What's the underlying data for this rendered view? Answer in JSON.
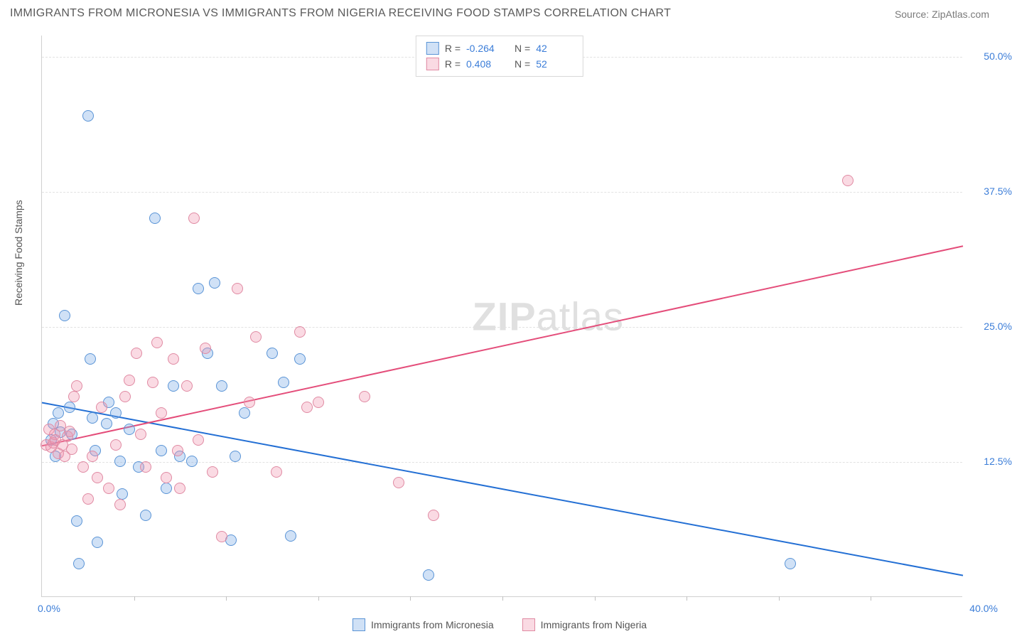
{
  "title": "IMMIGRANTS FROM MICRONESIA VS IMMIGRANTS FROM NIGERIA RECEIVING FOOD STAMPS CORRELATION CHART",
  "source_label": "Source: ",
  "source_name": "ZipAtlas.com",
  "ylabel": "Receiving Food Stamps",
  "watermark_bold": "ZIP",
  "watermark_light": "atlas",
  "axes": {
    "xmin": 0.0,
    "xmax": 40.0,
    "ymin": 0.0,
    "ymax": 52.0,
    "ytick_labels": [
      "12.5%",
      "25.0%",
      "37.5%",
      "50.0%"
    ],
    "ytick_values": [
      12.5,
      25.0,
      37.5,
      50.0
    ],
    "xtick_left": "0.0%",
    "xtick_right": "40.0%",
    "xtick_minor_positions": [
      4,
      8,
      12,
      16,
      20,
      24,
      28,
      32,
      36
    ]
  },
  "series": [
    {
      "name": "Immigrants from Micronesia",
      "fill": "rgba(120,170,230,0.35)",
      "stroke": "#5a94d6",
      "line_color": "#236fd4",
      "R": "-0.264",
      "N": "42",
      "trend": {
        "x1": 0,
        "y1": 18.0,
        "x2": 40,
        "y2": 2.0
      },
      "points": [
        [
          0.4,
          14.5
        ],
        [
          0.5,
          16.0
        ],
        [
          0.6,
          13.0
        ],
        [
          0.7,
          17.0
        ],
        [
          0.8,
          15.2
        ],
        [
          1.0,
          26.0
        ],
        [
          1.2,
          17.5
        ],
        [
          1.3,
          15.0
        ],
        [
          1.5,
          7.0
        ],
        [
          1.6,
          3.0
        ],
        [
          2.0,
          44.5
        ],
        [
          2.1,
          22.0
        ],
        [
          2.2,
          16.5
        ],
        [
          2.3,
          13.5
        ],
        [
          2.4,
          5.0
        ],
        [
          2.8,
          16.0
        ],
        [
          2.9,
          18.0
        ],
        [
          3.2,
          17.0
        ],
        [
          3.4,
          12.5
        ],
        [
          3.5,
          9.5
        ],
        [
          3.8,
          15.5
        ],
        [
          4.2,
          12.0
        ],
        [
          4.5,
          7.5
        ],
        [
          4.9,
          35.0
        ],
        [
          5.2,
          13.5
        ],
        [
          5.4,
          10.0
        ],
        [
          5.7,
          19.5
        ],
        [
          6.0,
          13.0
        ],
        [
          6.5,
          12.5
        ],
        [
          6.8,
          28.5
        ],
        [
          7.2,
          22.5
        ],
        [
          7.5,
          29.0
        ],
        [
          7.8,
          19.5
        ],
        [
          8.2,
          5.2
        ],
        [
          8.4,
          13.0
        ],
        [
          8.8,
          17.0
        ],
        [
          10.0,
          22.5
        ],
        [
          10.5,
          19.8
        ],
        [
          10.8,
          5.6
        ],
        [
          16.8,
          2.0
        ],
        [
          32.5,
          3.0
        ],
        [
          11.2,
          22.0
        ]
      ]
    },
    {
      "name": "Immigrants from Nigeria",
      "fill": "rgba(240,150,175,0.35)",
      "stroke": "#e08aa3",
      "line_color": "#e44d7a",
      "R": "0.408",
      "N": "52",
      "trend": {
        "x1": 0,
        "y1": 14.0,
        "x2": 40,
        "y2": 32.5
      },
      "points": [
        [
          0.2,
          14.0
        ],
        [
          0.3,
          15.5
        ],
        [
          0.4,
          13.8
        ],
        [
          0.5,
          14.2
        ],
        [
          0.55,
          15.0
        ],
        [
          0.6,
          14.5
        ],
        [
          0.7,
          13.2
        ],
        [
          0.8,
          15.8
        ],
        [
          0.9,
          14.0
        ],
        [
          1.0,
          13.0
        ],
        [
          1.1,
          14.8
        ],
        [
          1.2,
          15.3
        ],
        [
          1.3,
          13.6
        ],
        [
          1.4,
          18.5
        ],
        [
          1.5,
          19.5
        ],
        [
          1.8,
          12.0
        ],
        [
          2.0,
          9.0
        ],
        [
          2.2,
          13.0
        ],
        [
          2.4,
          11.0
        ],
        [
          2.6,
          17.5
        ],
        [
          2.9,
          10.0
        ],
        [
          3.2,
          14.0
        ],
        [
          3.4,
          8.5
        ],
        [
          3.6,
          18.5
        ],
        [
          3.8,
          20.0
        ],
        [
          4.1,
          22.5
        ],
        [
          4.3,
          15.0
        ],
        [
          4.5,
          12.0
        ],
        [
          4.8,
          19.8
        ],
        [
          5.0,
          23.5
        ],
        [
          5.2,
          17.0
        ],
        [
          5.4,
          11.0
        ],
        [
          5.7,
          22.0
        ],
        [
          6.0,
          10.0
        ],
        [
          6.3,
          19.5
        ],
        [
          6.6,
          35.0
        ],
        [
          6.8,
          14.5
        ],
        [
          7.1,
          23.0
        ],
        [
          7.4,
          11.5
        ],
        [
          7.8,
          5.5
        ],
        [
          8.5,
          28.5
        ],
        [
          9.0,
          18.0
        ],
        [
          9.3,
          24.0
        ],
        [
          10.2,
          11.5
        ],
        [
          11.2,
          24.5
        ],
        [
          11.5,
          17.5
        ],
        [
          12.0,
          18.0
        ],
        [
          14.0,
          18.5
        ],
        [
          15.5,
          10.5
        ],
        [
          17.0,
          7.5
        ],
        [
          35.0,
          38.5
        ],
        [
          5.9,
          13.5
        ]
      ]
    }
  ],
  "legend_top": {
    "rows": [
      {
        "series_index": 0,
        "R_label": "R =",
        "N_label": "N ="
      },
      {
        "series_index": 1,
        "R_label": "R =",
        "N_label": "N ="
      }
    ]
  },
  "colors": {
    "text": "#555555",
    "grid": "#e2e2e2",
    "axis": "#d0d0d0",
    "tick_text": "#3b7dd8"
  }
}
